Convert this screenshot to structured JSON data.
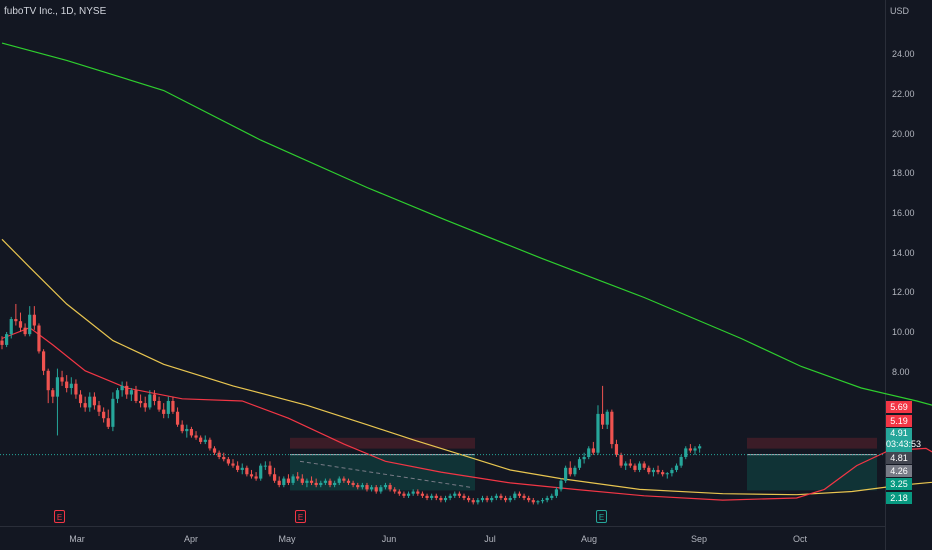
{
  "header": {
    "title": "fuboTV Inc., 1D, NYSE",
    "currency": "USD"
  },
  "y_axis": {
    "ticks": [
      "24.00",
      "22.00",
      "20.00",
      "18.00",
      "16.00",
      "14.00",
      "12.00",
      "10.00",
      "8.00"
    ]
  },
  "x_axis": {
    "ticks": [
      "Mar",
      "Apr",
      "May",
      "Jun",
      "Jul",
      "Aug",
      "Sep",
      "Oct"
    ]
  },
  "price_tags": [
    {
      "value": "5.69",
      "color": "#f23645"
    },
    {
      "value": "5.19",
      "color": "#f23645"
    },
    {
      "value": "4.91",
      "time": "03:43:53",
      "color": "#26a69a"
    },
    {
      "value": "4.81",
      "color": "#434651"
    },
    {
      "value": "4.26",
      "color": "#787b86"
    },
    {
      "value": "3.25",
      "color": "#089981"
    },
    {
      "value": "2.18",
      "color": "#089981"
    }
  ],
  "earnings_markers": [
    {
      "label": "E",
      "color": "#f23645"
    },
    {
      "label": "E",
      "color": "#f23645"
    },
    {
      "label": "E",
      "color": "#26a69a"
    }
  ],
  "chart_data": {
    "type": "candlestick",
    "title": "fuboTV Inc., 1D, NYSE",
    "y_unit": "USD",
    "ylim": [
      1.6,
      26
    ],
    "x_ticks": [
      "Mar",
      "Apr",
      "May",
      "Jun",
      "Jul",
      "Aug",
      "Sep",
      "Oct"
    ],
    "candles": [
      [
        10.2,
        10.4,
        9.8,
        10.0
      ],
      [
        10.0,
        10.6,
        9.9,
        10.5
      ],
      [
        10.5,
        11.3,
        10.3,
        11.2
      ],
      [
        11.2,
        11.9,
        10.9,
        11.1
      ],
      [
        11.1,
        11.5,
        10.6,
        10.8
      ],
      [
        10.8,
        11.0,
        10.4,
        10.5
      ],
      [
        10.5,
        11.8,
        10.4,
        11.4
      ],
      [
        11.4,
        11.8,
        10.7,
        10.9
      ],
      [
        10.9,
        11.0,
        9.6,
        9.7
      ],
      [
        9.7,
        9.8,
        8.6,
        8.8
      ],
      [
        8.8,
        8.9,
        7.3,
        7.9
      ],
      [
        7.9,
        8.0,
        7.3,
        7.6
      ],
      [
        7.6,
        8.9,
        5.8,
        8.5
      ],
      [
        8.5,
        8.8,
        8.1,
        8.3
      ],
      [
        8.3,
        8.6,
        7.8,
        8.0
      ],
      [
        8.0,
        8.5,
        7.7,
        8.2
      ],
      [
        8.2,
        8.4,
        7.5,
        7.7
      ],
      [
        7.7,
        7.9,
        7.1,
        7.3
      ],
      [
        7.3,
        7.6,
        6.9,
        7.1
      ],
      [
        7.1,
        7.8,
        6.9,
        7.6
      ],
      [
        7.6,
        7.8,
        7.0,
        7.2
      ],
      [
        7.2,
        7.4,
        6.7,
        6.9
      ],
      [
        6.9,
        7.1,
        6.4,
        6.6
      ],
      [
        6.6,
        7.0,
        6.1,
        6.2
      ],
      [
        6.2,
        7.8,
        6.0,
        7.5
      ],
      [
        7.5,
        8.0,
        7.3,
        7.9
      ],
      [
        7.9,
        8.3,
        7.6,
        8.1
      ],
      [
        8.1,
        8.3,
        7.5,
        7.7
      ],
      [
        7.7,
        8.0,
        7.4,
        7.9
      ],
      [
        7.9,
        8.1,
        7.3,
        7.4
      ],
      [
        7.4,
        7.7,
        7.1,
        7.3
      ],
      [
        7.3,
        7.6,
        6.9,
        7.1
      ],
      [
        7.1,
        7.9,
        7.0,
        7.7
      ],
      [
        7.7,
        7.9,
        7.2,
        7.4
      ],
      [
        7.4,
        7.6,
        6.9,
        7.0
      ],
      [
        7.0,
        7.3,
        6.6,
        6.8
      ],
      [
        6.8,
        7.6,
        6.6,
        7.4
      ],
      [
        7.4,
        7.6,
        6.8,
        6.9
      ],
      [
        6.9,
        7.1,
        6.2,
        6.3
      ],
      [
        6.3,
        6.5,
        5.9,
        6.0
      ],
      [
        6.0,
        6.3,
        5.7,
        6.1
      ],
      [
        6.1,
        6.2,
        5.7,
        5.8
      ],
      [
        5.8,
        6.0,
        5.6,
        5.7
      ],
      [
        5.7,
        5.8,
        5.4,
        5.5
      ],
      [
        5.5,
        5.8,
        5.4,
        5.6
      ],
      [
        5.6,
        5.7,
        5.1,
        5.2
      ],
      [
        5.2,
        5.3,
        4.9,
        5.0
      ],
      [
        5.0,
        5.1,
        4.7,
        4.8
      ],
      [
        4.8,
        5.0,
        4.6,
        4.7
      ],
      [
        4.7,
        4.8,
        4.4,
        4.5
      ],
      [
        4.5,
        4.7,
        4.3,
        4.4
      ],
      [
        4.4,
        4.6,
        4.1,
        4.2
      ],
      [
        4.2,
        4.5,
        4.0,
        4.3
      ],
      [
        4.3,
        4.4,
        3.9,
        4.0
      ],
      [
        4.0,
        4.2,
        3.8,
        3.9
      ],
      [
        3.9,
        4.1,
        3.7,
        3.8
      ],
      [
        3.8,
        4.5,
        3.7,
        4.4
      ],
      [
        4.4,
        4.6,
        4.2,
        4.4
      ],
      [
        4.4,
        4.6,
        3.9,
        4.0
      ],
      [
        4.0,
        4.3,
        3.6,
        3.7
      ],
      [
        3.7,
        3.9,
        3.4,
        3.5
      ],
      [
        3.5,
        3.9,
        3.4,
        3.8
      ],
      [
        3.8,
        4.0,
        3.5,
        3.6
      ],
      [
        3.6,
        4.0,
        3.5,
        3.9
      ],
      [
        3.9,
        4.1,
        3.7,
        3.8
      ],
      [
        3.8,
        4.0,
        3.5,
        3.6
      ],
      [
        3.6,
        3.8,
        3.4,
        3.7
      ],
      [
        3.7,
        3.9,
        3.5,
        3.6
      ],
      [
        3.6,
        3.8,
        3.4,
        3.5
      ],
      [
        3.5,
        3.7,
        3.4,
        3.6
      ],
      [
        3.6,
        3.8,
        3.5,
        3.7
      ],
      [
        3.7,
        3.8,
        3.4,
        3.5
      ],
      [
        3.5,
        3.7,
        3.4,
        3.6
      ],
      [
        3.6,
        3.9,
        3.5,
        3.8
      ],
      [
        3.8,
        3.9,
        3.6,
        3.7
      ],
      [
        3.7,
        3.8,
        3.5,
        3.6
      ],
      [
        3.6,
        3.7,
        3.4,
        3.5
      ],
      [
        3.5,
        3.6,
        3.3,
        3.4
      ],
      [
        3.4,
        3.6,
        3.3,
        3.5
      ],
      [
        3.5,
        3.6,
        3.2,
        3.3
      ],
      [
        3.3,
        3.5,
        3.2,
        3.4
      ],
      [
        3.4,
        3.5,
        3.1,
        3.2
      ],
      [
        3.2,
        3.5,
        3.1,
        3.4
      ],
      [
        3.4,
        3.6,
        3.3,
        3.5
      ],
      [
        3.5,
        3.6,
        3.2,
        3.3
      ],
      [
        3.3,
        3.4,
        3.1,
        3.2
      ],
      [
        3.2,
        3.3,
        3.0,
        3.1
      ],
      [
        3.1,
        3.2,
        2.9,
        3.0
      ],
      [
        3.0,
        3.2,
        2.9,
        3.1
      ],
      [
        3.1,
        3.3,
        3.0,
        3.2
      ],
      [
        3.2,
        3.3,
        3.0,
        3.1
      ],
      [
        3.1,
        3.2,
        2.9,
        3.0
      ],
      [
        3.0,
        3.1,
        2.8,
        2.9
      ],
      [
        2.9,
        3.1,
        2.8,
        3.0
      ],
      [
        3.0,
        3.1,
        2.8,
        2.9
      ],
      [
        2.9,
        3.0,
        2.7,
        2.8
      ],
      [
        2.8,
        3.0,
        2.7,
        2.9
      ],
      [
        2.9,
        3.1,
        2.8,
        3.0
      ],
      [
        3.0,
        3.2,
        2.9,
        3.1
      ],
      [
        3.1,
        3.2,
        2.9,
        3.0
      ],
      [
        3.0,
        3.1,
        2.8,
        2.9
      ],
      [
        2.9,
        3.0,
        2.7,
        2.8
      ],
      [
        2.8,
        2.9,
        2.6,
        2.7
      ],
      [
        2.7,
        2.9,
        2.6,
        2.8
      ],
      [
        2.8,
        3.0,
        2.7,
        2.9
      ],
      [
        2.9,
        3.0,
        2.7,
        2.8
      ],
      [
        2.8,
        3.0,
        2.7,
        2.9
      ],
      [
        2.9,
        3.1,
        2.8,
        3.0
      ],
      [
        3.0,
        3.1,
        2.8,
        2.9
      ],
      [
        2.9,
        3.0,
        2.7,
        2.8
      ],
      [
        2.8,
        3.0,
        2.7,
        2.9
      ],
      [
        2.9,
        3.2,
        2.8,
        3.1
      ],
      [
        3.1,
        3.2,
        2.9,
        3.0
      ],
      [
        3.0,
        3.1,
        2.8,
        2.9
      ],
      [
        2.9,
        3.0,
        2.7,
        2.8
      ],
      [
        2.8,
        2.9,
        2.6,
        2.7
      ],
      [
        2.7,
        2.8,
        2.6,
        2.75
      ],
      [
        2.75,
        2.9,
        2.65,
        2.8
      ],
      [
        2.8,
        3.0,
        2.7,
        2.9
      ],
      [
        2.9,
        3.1,
        2.8,
        3.0
      ],
      [
        3.0,
        3.4,
        2.9,
        3.3
      ],
      [
        3.3,
        3.8,
        3.2,
        3.7
      ],
      [
        3.7,
        4.4,
        3.6,
        4.3
      ],
      [
        4.3,
        4.6,
        3.9,
        4.0
      ],
      [
        4.0,
        4.4,
        3.9,
        4.3
      ],
      [
        4.3,
        4.8,
        4.2,
        4.7
      ],
      [
        4.7,
        5.0,
        4.5,
        4.8
      ],
      [
        4.8,
        5.3,
        4.7,
        5.2
      ],
      [
        5.2,
        5.5,
        4.9,
        5.0
      ],
      [
        5.0,
        7.2,
        4.9,
        6.8
      ],
      [
        6.8,
        8.1,
        6.1,
        6.3
      ],
      [
        6.3,
        7.0,
        6.1,
        6.9
      ],
      [
        6.9,
        7.0,
        5.2,
        5.4
      ],
      [
        5.4,
        5.6,
        4.8,
        4.9
      ],
      [
        4.9,
        5.0,
        4.3,
        4.4
      ],
      [
        4.4,
        4.6,
        4.2,
        4.5
      ],
      [
        4.5,
        4.7,
        4.3,
        4.4
      ],
      [
        4.4,
        4.5,
        4.1,
        4.2
      ],
      [
        4.2,
        4.6,
        4.1,
        4.5
      ],
      [
        4.5,
        4.6,
        4.2,
        4.3
      ],
      [
        4.3,
        4.4,
        4.0,
        4.1
      ],
      [
        4.1,
        4.3,
        3.9,
        4.2
      ],
      [
        4.2,
        4.4,
        4.0,
        4.1
      ],
      [
        4.1,
        4.2,
        3.9,
        4.0
      ],
      [
        4.0,
        4.1,
        3.8,
        4.05
      ],
      [
        4.05,
        4.3,
        3.9,
        4.2
      ],
      [
        4.2,
        4.5,
        4.1,
        4.4
      ],
      [
        4.4,
        4.9,
        4.3,
        4.8
      ],
      [
        4.8,
        5.3,
        4.7,
        5.2
      ],
      [
        5.2,
        5.4,
        5.0,
        5.1
      ],
      [
        5.1,
        5.3,
        4.9,
        5.2
      ],
      [
        5.2,
        5.4,
        5.0,
        5.3
      ]
    ],
    "moving_averages": [
      {
        "name": "",
        "color": "#2ece2e",
        "points": [
          [
            0,
            24.0
          ],
          [
            14,
            23.2
          ],
          [
            35,
            21.8
          ],
          [
            56,
            19.5
          ],
          [
            79,
            17.3
          ],
          [
            96,
            15.8
          ],
          [
            117,
            14.0
          ],
          [
            139,
            12.2
          ],
          [
            160,
            10.3
          ],
          [
            173,
            9.0
          ],
          [
            186,
            8.0
          ],
          [
            198,
            7.4
          ],
          [
            210,
            6.7
          ],
          [
            218,
            6.1
          ]
        ]
      },
      {
        "name": "",
        "color": "#e8c550",
        "points": [
          [
            0,
            14.9
          ],
          [
            6,
            13.6
          ],
          [
            14,
            11.9
          ],
          [
            24,
            10.2
          ],
          [
            35,
            9.1
          ],
          [
            50,
            8.1
          ],
          [
            66,
            7.2
          ],
          [
            79,
            6.3
          ],
          [
            89,
            5.6
          ],
          [
            98,
            5.0
          ],
          [
            110,
            4.2
          ],
          [
            121,
            3.8
          ],
          [
            138,
            3.3
          ],
          [
            156,
            3.1
          ],
          [
            172,
            3.05
          ],
          [
            184,
            3.2
          ],
          [
            195,
            3.5
          ],
          [
            210,
            3.8
          ],
          [
            218,
            4.2
          ]
        ]
      },
      {
        "name": "",
        "color": "#f23645",
        "points": [
          [
            0,
            10.3
          ],
          [
            6,
            10.8
          ],
          [
            11,
            10.0
          ],
          [
            18,
            8.8
          ],
          [
            27,
            8.0
          ],
          [
            39,
            7.5
          ],
          [
            52,
            7.4
          ],
          [
            62,
            6.6
          ],
          [
            74,
            5.4
          ],
          [
            83,
            4.6
          ],
          [
            95,
            4.1
          ],
          [
            110,
            3.6
          ],
          [
            124,
            3.3
          ],
          [
            139,
            3.0
          ],
          [
            156,
            2.8
          ],
          [
            172,
            2.9
          ],
          [
            178,
            3.3
          ],
          [
            185,
            4.4
          ],
          [
            192,
            5.1
          ],
          [
            200,
            5.2
          ],
          [
            205,
            4.6
          ],
          [
            212,
            4.3
          ],
          [
            218,
            4.8
          ]
        ]
      }
    ],
    "zones": [
      {
        "type": "stop",
        "from": 5.19,
        "to": 5.69
      },
      {
        "type": "target",
        "from": 4.91,
        "to": 3.25
      }
    ],
    "current_price": 4.91,
    "countdown": "03:43:53"
  }
}
